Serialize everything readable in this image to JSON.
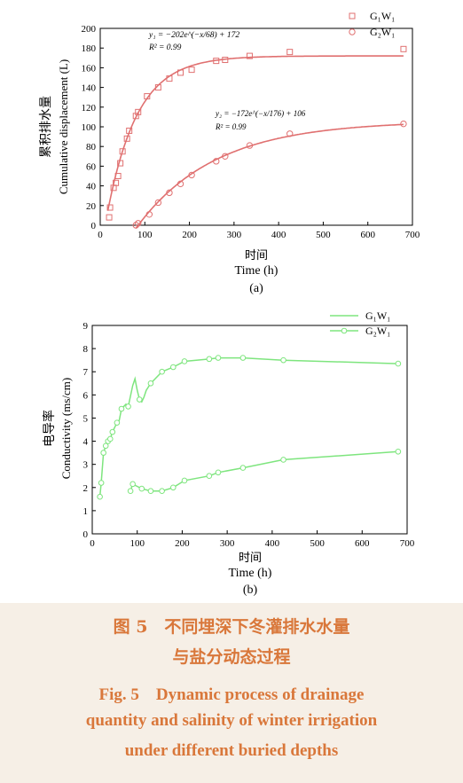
{
  "chart_data": [
    {
      "panel": "(a)",
      "type": "scatter",
      "ylabel_cn": "累积排水量",
      "ylabel": "Cumulative displacement (L)",
      "xlabel_cn": "时间",
      "xlabel": "Time (h)",
      "xlim": [
        0,
        700
      ],
      "ylim": [
        0,
        200
      ],
      "xticks": [
        0,
        100,
        200,
        300,
        400,
        500,
        600,
        700
      ],
      "yticks": [
        0,
        20,
        40,
        60,
        80,
        100,
        120,
        140,
        160,
        180,
        200
      ],
      "legend_position": "top-right",
      "series": [
        {
          "name": "G₁W₁",
          "marker": "square",
          "color": "#e07070",
          "x": [
            20,
            22,
            30,
            35,
            40,
            45,
            50,
            60,
            65,
            80,
            85,
            105,
            130,
            155,
            180,
            205,
            260,
            280,
            335,
            425,
            680
          ],
          "y": [
            8,
            18,
            38,
            43,
            50,
            63,
            75,
            88,
            96,
            111,
            115,
            131,
            140,
            149,
            155,
            158,
            167,
            168,
            172,
            176,
            179
          ],
          "fit": {
            "equation": "y₁ = −202e^(−x/68) + 172",
            "r2": "R² = 0.99",
            "a": -202,
            "t": 68,
            "c": 172,
            "x_start": 17
          }
        },
        {
          "name": "G₂W₁",
          "marker": "circle",
          "color": "#e07070",
          "x": [
            80,
            85,
            110,
            130,
            155,
            180,
            205,
            260,
            280,
            335,
            425,
            680
          ],
          "y": [
            0,
            2,
            11,
            23,
            33,
            42,
            51,
            65,
            70,
            81,
            93,
            103
          ],
          "fit": {
            "equation": "y₂ = −172e^(−x/176) + 106",
            "r2": "R² = 0.99",
            "a": -172,
            "t": 176,
            "c": 106,
            "x_start": 80
          }
        }
      ]
    },
    {
      "panel": "(b)",
      "type": "line",
      "ylabel_cn": "电导率",
      "ylabel": "Conductivity (ms/cm)",
      "xlabel_cn": "时间",
      "xlabel": "Time (h)",
      "xlim": [
        0,
        700
      ],
      "ylim": [
        0,
        9
      ],
      "xticks": [
        0,
        100,
        200,
        300,
        400,
        500,
        600,
        700
      ],
      "yticks": [
        0,
        1,
        2,
        3,
        4,
        5,
        6,
        7,
        8,
        9
      ],
      "legend_position": "top-right",
      "series": [
        {
          "name": "G₁W₁",
          "color": "#7ee57e",
          "x": [
            17,
            20,
            25,
            30,
            35,
            40,
            45,
            55,
            60,
            65,
            75,
            80,
            90,
            95,
            100,
            105,
            110,
            115,
            120,
            130,
            155,
            180,
            205,
            260,
            280,
            335,
            425,
            680
          ],
          "y": [
            1.6,
            2.2,
            3.5,
            3.8,
            4.0,
            4.1,
            4.4,
            4.8,
            4.9,
            5.4,
            5.6,
            5.5,
            6.4,
            6.7,
            6.2,
            5.8,
            5.7,
            5.9,
            6.2,
            6.5,
            7.0,
            7.2,
            7.45,
            7.55,
            7.6,
            7.6,
            7.5,
            7.35
          ],
          "markers_x": [
            17,
            20,
            25,
            30,
            35,
            40,
            45,
            55,
            65,
            80,
            105,
            130,
            155,
            180,
            205,
            260,
            280,
            335,
            425,
            680
          ],
          "markers_y": [
            1.6,
            2.2,
            3.5,
            3.8,
            4.0,
            4.1,
            4.4,
            4.8,
            5.4,
            5.5,
            5.8,
            6.5,
            7.0,
            7.2,
            7.45,
            7.55,
            7.6,
            7.6,
            7.5,
            7.35
          ]
        },
        {
          "name": "G₂W₁",
          "color": "#7ee57e",
          "x": [
            85,
            90,
            100,
            110,
            130,
            155,
            180,
            205,
            260,
            280,
            335,
            425,
            680
          ],
          "y": [
            1.85,
            2.15,
            2.05,
            1.95,
            1.85,
            1.85,
            2.0,
            2.3,
            2.5,
            2.65,
            2.85,
            3.2,
            3.55
          ],
          "markers_x": [
            85,
            90,
            110,
            130,
            155,
            180,
            205,
            260,
            280,
            335,
            425,
            680
          ],
          "markers_y": [
            1.85,
            2.15,
            1.95,
            1.85,
            1.85,
            2.0,
            2.3,
            2.5,
            2.65,
            2.85,
            3.2,
            3.55
          ]
        }
      ]
    }
  ],
  "caption": {
    "cn_line1": "图 5　不同埋深下冬灌排水水量",
    "cn_line2": "与盐分动态过程",
    "en_line1": "Fig. 5　Dynamic process of drainage",
    "en_line2": "quantity and salinity of winter irrigation",
    "en_line3": "under different buried depths"
  }
}
